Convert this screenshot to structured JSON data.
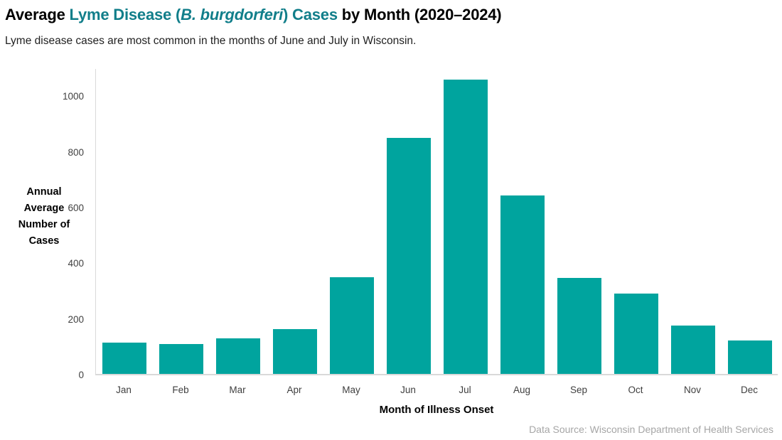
{
  "title": {
    "part1": "Average ",
    "part2": "Lyme Disease (",
    "part3": "B. burgdorferi",
    "part4": ") Cases",
    "part5": " by Month (2020–2024)"
  },
  "subtitle": "Lyme disease cases are most common in the months of June and July in Wisconsin.",
  "source": "Data Source: Wisconsin Department of Health Services",
  "colors": {
    "title_accent": "#117E8A",
    "bar": "#00A49E",
    "axis_line": "#D9D9D9",
    "tick_text": "#404040",
    "source_text": "#A6A6A6"
  },
  "chart_data": {
    "type": "bar",
    "title": "Average Lyme Disease (B. burgdorferi) Cases by Month (2020–2024)",
    "subtitle": "Lyme disease cases are most common in the months of June and July in Wisconsin.",
    "categories": [
      "Jan",
      "Feb",
      "Mar",
      "Apr",
      "May",
      "Jun",
      "Jul",
      "Aug",
      "Sep",
      "Oct",
      "Nov",
      "Dec"
    ],
    "values": [
      113,
      106,
      128,
      160,
      348,
      847,
      1057,
      640,
      344,
      289,
      174,
      121
    ],
    "xlabel": "Month of Illness Onset",
    "ylabel": "Annual Average Number of Cases",
    "ylabel_lines": [
      "Annual",
      "Average",
      "Number of",
      "Cases"
    ],
    "yticks": [
      0,
      200,
      400,
      600,
      800,
      1000
    ],
    "ylim": [
      0,
      1100
    ],
    "grid": false,
    "legend": "none",
    "bar_color": "#00A49E",
    "annotation": "Data Source: Wisconsin Department of Health Services"
  }
}
